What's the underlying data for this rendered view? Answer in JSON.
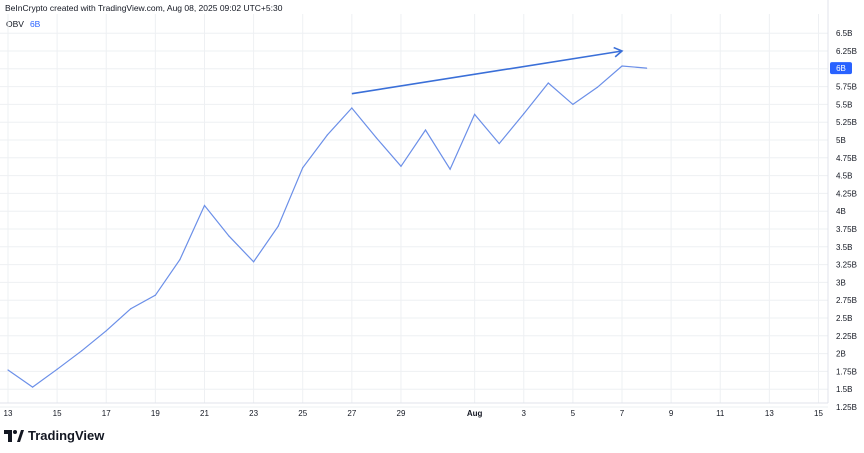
{
  "header": {
    "credit": "BeInCrypto created with TradingView.com, Aug 08, 2025 09:02 UTC+5:30"
  },
  "legend": {
    "name": "OBV",
    "value": "6B"
  },
  "brand": {
    "name": "TradingView"
  },
  "colors": {
    "line": "#6b8fe8",
    "arrow": "#3a6fd8",
    "badge": "#2962ff",
    "grid": "#eef0f3"
  },
  "chart_data": {
    "type": "line",
    "title": "",
    "xlabel": "",
    "ylabel": "",
    "y_ticks": [
      {
        "label": "6.5B",
        "value": 6.5
      },
      {
        "label": "6.25B",
        "value": 6.25
      },
      {
        "label": "6B",
        "value": 6.0
      },
      {
        "label": "5.75B",
        "value": 5.75
      },
      {
        "label": "5.5B",
        "value": 5.5
      },
      {
        "label": "5.25B",
        "value": 5.25
      },
      {
        "label": "5B",
        "value": 5.0
      },
      {
        "label": "4.75B",
        "value": 4.75
      },
      {
        "label": "4.5B",
        "value": 4.5
      },
      {
        "label": "4.25B",
        "value": 4.25
      },
      {
        "label": "4B",
        "value": 4.0
      },
      {
        "label": "3.75B",
        "value": 3.75
      },
      {
        "label": "3.5B",
        "value": 3.5
      },
      {
        "label": "3.25B",
        "value": 3.25
      },
      {
        "label": "3B",
        "value": 3.0
      },
      {
        "label": "2.75B",
        "value": 2.75
      },
      {
        "label": "2.5B",
        "value": 2.5
      },
      {
        "label": "2.25B",
        "value": 2.25
      },
      {
        "label": "2B",
        "value": 2.0
      },
      {
        "label": "1.75B",
        "value": 1.75
      },
      {
        "label": "1.5B",
        "value": 1.5
      },
      {
        "label": "1.25B",
        "value": 1.25
      }
    ],
    "ylim": [
      1.15,
      6.6
    ],
    "x_ticks": [
      {
        "label": "13",
        "date": "2025-07-13"
      },
      {
        "label": "15",
        "date": "2025-07-15"
      },
      {
        "label": "17",
        "date": "2025-07-17"
      },
      {
        "label": "19",
        "date": "2025-07-19"
      },
      {
        "label": "21",
        "date": "2025-07-21"
      },
      {
        "label": "23",
        "date": "2025-07-23"
      },
      {
        "label": "25",
        "date": "2025-07-25"
      },
      {
        "label": "27",
        "date": "2025-07-27"
      },
      {
        "label": "29",
        "date": "2025-07-29"
      },
      {
        "label": "Aug",
        "date": "2025-08-01",
        "bold": true
      },
      {
        "label": "3",
        "date": "2025-08-03"
      },
      {
        "label": "5",
        "date": "2025-08-05"
      },
      {
        "label": "7",
        "date": "2025-08-07"
      },
      {
        "label": "9",
        "date": "2025-08-09"
      },
      {
        "label": "11",
        "date": "2025-08-11"
      },
      {
        "label": "13",
        "date": "2025-08-13"
      },
      {
        "label": "15",
        "date": "2025-08-15"
      }
    ],
    "series": [
      {
        "name": "OBV",
        "x": [
          "2025-07-13",
          "2025-07-14",
          "2025-07-15",
          "2025-07-16",
          "2025-07-17",
          "2025-07-18",
          "2025-07-19",
          "2025-07-20",
          "2025-07-21",
          "2025-07-22",
          "2025-07-23",
          "2025-07-24",
          "2025-07-25",
          "2025-07-26",
          "2025-07-27",
          "2025-07-28",
          "2025-07-29",
          "2025-07-30",
          "2025-07-31",
          "2025-08-01",
          "2025-08-02",
          "2025-08-03",
          "2025-08-04",
          "2025-08-05",
          "2025-08-06",
          "2025-08-07",
          "2025-08-08"
        ],
        "y": [
          1.77,
          1.53,
          1.78,
          2.04,
          2.32,
          2.63,
          2.82,
          3.32,
          4.08,
          3.65,
          3.29,
          3.79,
          4.61,
          5.07,
          5.45,
          5.03,
          4.63,
          5.14,
          4.59,
          5.36,
          4.95,
          5.37,
          5.8,
          5.5,
          5.74,
          6.04,
          6.01
        ]
      }
    ],
    "last_value_badge": "6B",
    "annotations": [
      {
        "type": "arrow",
        "from": {
          "x": "2025-07-27",
          "y": 5.65
        },
        "to": {
          "x": "2025-08-07",
          "y": 6.25
        }
      }
    ],
    "grid": true
  }
}
